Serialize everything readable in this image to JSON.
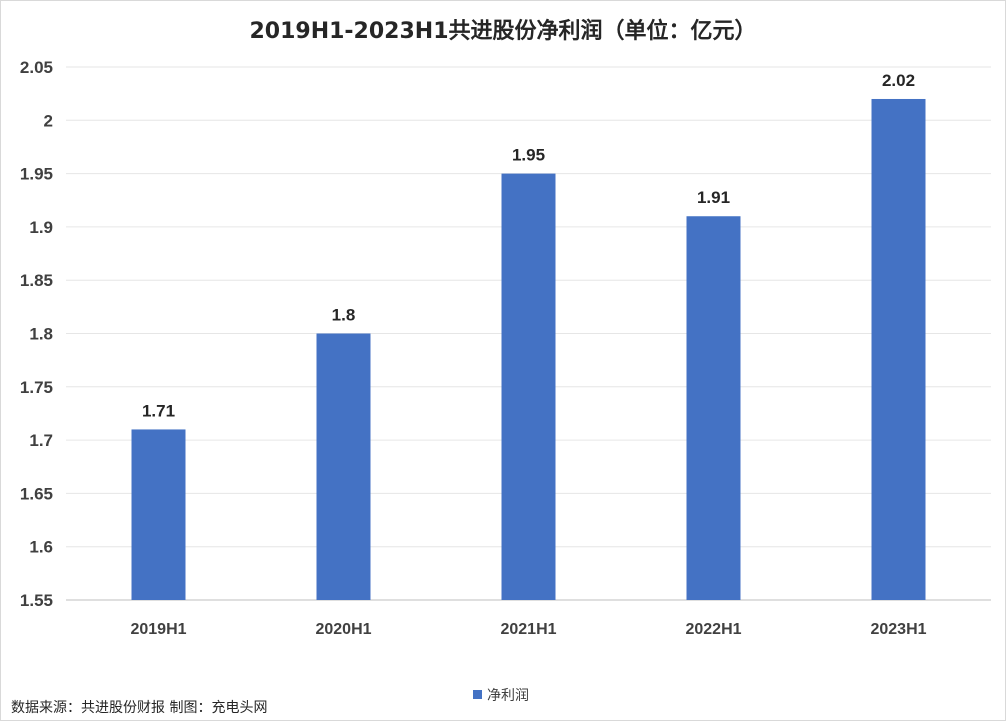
{
  "chart_data": {
    "type": "bar",
    "title": "2019H1-2023H1共进股份净利润（单位：亿元）",
    "categories": [
      "2019H1",
      "2020H1",
      "2021H1",
      "2022H1",
      "2023H1"
    ],
    "series": [
      {
        "name": "净利润",
        "values": [
          1.71,
          1.8,
          1.95,
          1.91,
          2.02
        ],
        "color": "#4472c4"
      }
    ],
    "data_labels": [
      "1.71",
      "1.8",
      "1.95",
      "1.91",
      "2.02"
    ],
    "ylim": [
      1.55,
      2.05
    ],
    "yticks": [
      "1.55",
      "1.6",
      "1.65",
      "1.7",
      "1.75",
      "1.8",
      "1.85",
      "1.9",
      "1.95",
      "2",
      "2.05"
    ],
    "xlabel": "",
    "ylabel": "",
    "grid": true,
    "legend_position": "bottom"
  },
  "footer": {
    "source": "数据来源：共进股份财报  制图：充电头网"
  }
}
